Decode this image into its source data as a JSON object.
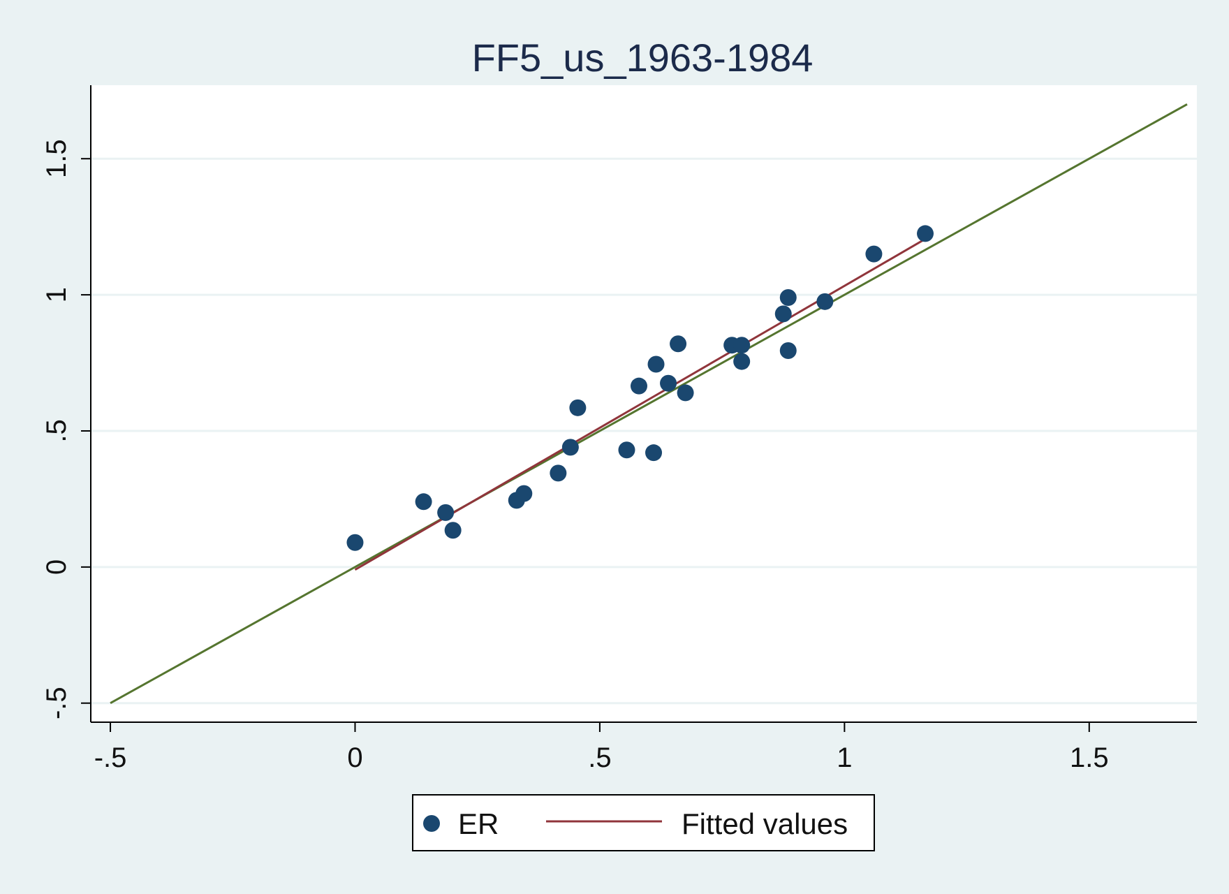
{
  "chart_data": {
    "type": "scatter",
    "title": "FF5_us_1963-1984",
    "xlabel": "",
    "ylabel": "",
    "xlim": [
      -0.54,
      1.72
    ],
    "ylim": [
      -0.57,
      1.77
    ],
    "x_ticks": [
      {
        "value": -0.5,
        "label": "-.5"
      },
      {
        "value": 0,
        "label": "0"
      },
      {
        "value": 0.5,
        "label": ".5"
      },
      {
        "value": 1,
        "label": "1"
      },
      {
        "value": 1.5,
        "label": "1.5"
      }
    ],
    "y_ticks": [
      {
        "value": -0.5,
        "label": "-.5"
      },
      {
        "value": 0,
        "label": "0"
      },
      {
        "value": 0.5,
        "label": ".5"
      },
      {
        "value": 1,
        "label": "1"
      },
      {
        "value": 1.5,
        "label": "1.5"
      }
    ],
    "grid": "horizontal",
    "series": [
      {
        "name": "ER",
        "kind": "scatter",
        "color": "#1a476f",
        "points": [
          [
            0.0,
            0.09
          ],
          [
            0.14,
            0.24
          ],
          [
            0.185,
            0.2
          ],
          [
            0.2,
            0.135
          ],
          [
            0.33,
            0.245
          ],
          [
            0.345,
            0.27
          ],
          [
            0.415,
            0.345
          ],
          [
            0.44,
            0.44
          ],
          [
            0.455,
            0.585
          ],
          [
            0.555,
            0.43
          ],
          [
            0.58,
            0.665
          ],
          [
            0.61,
            0.42
          ],
          [
            0.615,
            0.745
          ],
          [
            0.64,
            0.675
          ],
          [
            0.66,
            0.82
          ],
          [
            0.675,
            0.64
          ],
          [
            0.77,
            0.815
          ],
          [
            0.79,
            0.815
          ],
          [
            0.79,
            0.755
          ],
          [
            0.875,
            0.93
          ],
          [
            0.885,
            0.99
          ],
          [
            0.885,
            0.795
          ],
          [
            0.96,
            0.975
          ],
          [
            1.06,
            1.15
          ],
          [
            1.165,
            1.225
          ]
        ]
      },
      {
        "name": "Fitted values",
        "kind": "line",
        "color": "#90353b",
        "points": [
          [
            0.0,
            -0.01
          ],
          [
            1.165,
            1.205
          ]
        ]
      },
      {
        "kind": "line",
        "color": "#55752f",
        "points": [
          [
            -0.5,
            -0.5
          ],
          [
            1.7,
            1.7
          ]
        ]
      }
    ],
    "legend": {
      "position": "bottom",
      "entries": [
        "ER",
        "Fitted values"
      ]
    },
    "colors": {
      "background": "#eaf2f3",
      "plot_area": "#ffffff",
      "gridline": "#eaf2f3",
      "marker": "#1a476f",
      "fitted_line": "#90353b",
      "reference_line": "#55752f",
      "title": "#1b2a4a"
    }
  }
}
